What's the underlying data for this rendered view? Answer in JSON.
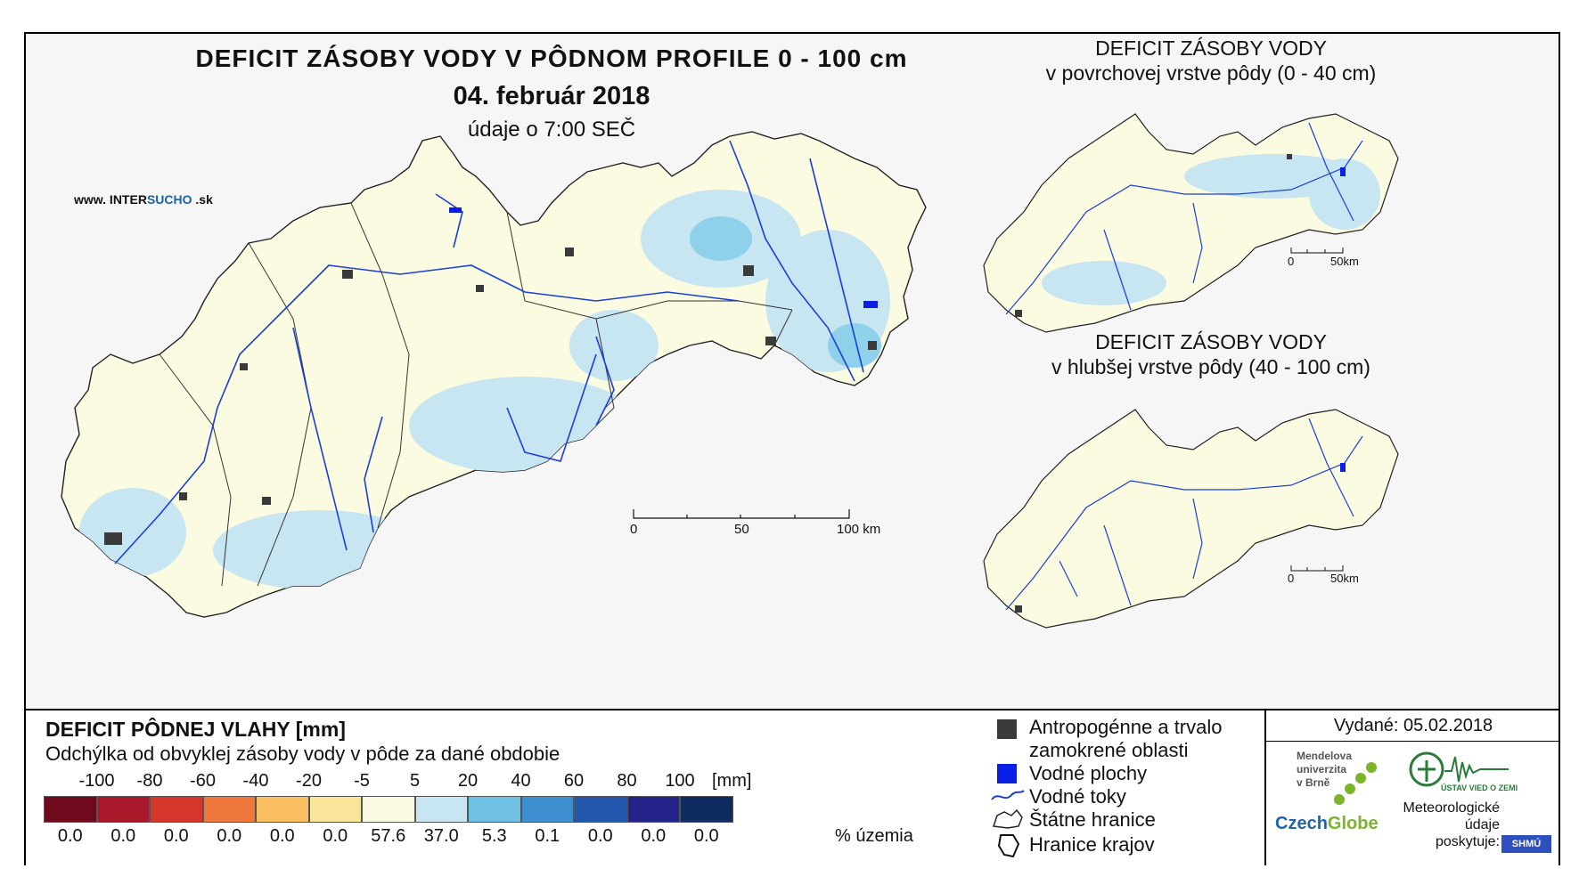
{
  "main_title": "DEFICIT ZÁSOBY VODY V PÔDNOM PROFILE 0 - 100 cm",
  "date": "04. február 2018",
  "time_note": "údaje o 7:00 SEČ",
  "website": {
    "prefix": "www. INTER",
    "highlight": "SUCHO",
    "suffix": " .sk"
  },
  "scale_main": {
    "l0": "0",
    "l50": "50",
    "l100": "100 km"
  },
  "inset_top": {
    "title_line1": "DEFICIT ZÁSOBY VODY",
    "title_line2": "v povrchovej vrstve pôdy (0 - 40 cm)",
    "scale_l0": "0",
    "scale_l50": "50km"
  },
  "inset_bottom": {
    "title_line1": "DEFICIT ZÁSOBY VODY",
    "title_line2": "v hlubšej vrstve pôdy (40 - 100 cm)",
    "scale_l0": "0",
    "scale_l50": "50km"
  },
  "legend": {
    "title": "DEFICIT PÔDNEJ VLAHY [mm]",
    "subtitle": "Odchýlka od obvyklej zásoby vody v pôde za dané obdobie",
    "unit": "[mm]",
    "ticks": [
      "-100",
      "-80",
      "-60",
      "-40",
      "-20",
      "-5",
      "5",
      "20",
      "40",
      "60",
      "80",
      "100"
    ],
    "colors": [
      "#6f0a1c",
      "#a8172a",
      "#d6352c",
      "#f0773c",
      "#f9bd62",
      "#f8e59a",
      "#fbfbe1",
      "#c7e6f2",
      "#6fc0e2",
      "#3d8fd0",
      "#2357ad",
      "#23238a",
      "#0f2a5e"
    ],
    "percents": [
      "0.0",
      "0.0",
      "0.0",
      "0.0",
      "0.0",
      "0.0",
      "57.6",
      "37.0",
      "5.3",
      "0.1",
      "0.0",
      "0.0",
      "0.0"
    ],
    "pct_label": "% územia"
  },
  "symbols": {
    "anthro_line1": "Antropogénne a trvalo",
    "anthro_line2": "zamokrené oblasti",
    "water_bodies": "Vodné plochy",
    "streams": "Vodné toky",
    "state_border": "Štátne hranice",
    "region_border": "Hranice krajov"
  },
  "issued": "Vydané: 05.02.2018",
  "logos": {
    "mendel_l1": "Mendelova",
    "mendel_l2": "univerzita",
    "mendel_l3": "v Brně",
    "czechglobe_a": "Czech",
    "czechglobe_b": "Globe",
    "uvz": "ÚSTAV VIED O ZEMI",
    "meteo_l1": "Meteorologické",
    "meteo_l2": "údaje",
    "meteo_l3": "poskytuje:",
    "shmu": "SHMÚ"
  }
}
